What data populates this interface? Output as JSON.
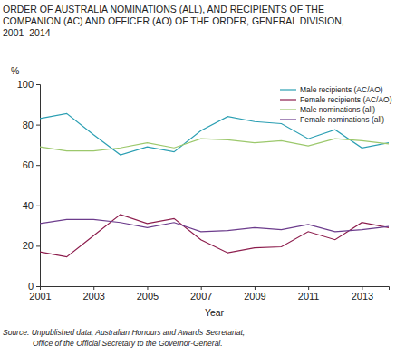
{
  "chart_data": {
    "type": "line",
    "title": "ORDER OF AUSTRALIA NOMINATIONS (ALL), AND RECIPIENTS OF THE\nCOMPANION (AC) AND OFFICER (AO) OF THE ORDER, GENERAL DIVISION,\n2001–2014",
    "x_label": "Year",
    "y_label": "%",
    "source": "Source: Unpublished data, Australian Honours and Awards Secretariat,\nOffice of the Official Secretary to the Governor-General.",
    "x": [
      2001,
      2002,
      2003,
      2004,
      2005,
      2006,
      2007,
      2008,
      2009,
      2010,
      2011,
      2012,
      2013,
      2014
    ],
    "series": [
      {
        "name": "Male recipients (AC/AO)",
        "color": "#2b9fb3",
        "values": [
          83,
          85.5,
          75,
          65,
          69,
          66.5,
          77,
          84,
          81.5,
          80.5,
          73,
          77.5,
          68.5,
          71
        ]
      },
      {
        "name": "Female recipients (AC/AO)",
        "color": "#8c1c4c",
        "values": [
          17,
          14.5,
          25,
          35.5,
          31,
          33.5,
          23,
          16.5,
          19,
          19.5,
          27,
          23,
          31.5,
          29
        ]
      },
      {
        "name": "Male nominations (all)",
        "color": "#9cc86c",
        "values": [
          69,
          67,
          67,
          68.5,
          71,
          68.5,
          73,
          72.5,
          71,
          72,
          69.5,
          73,
          72,
          70.5
        ]
      },
      {
        "name": "Female nominations (all)",
        "color": "#6c3c8c",
        "values": [
          31,
          33,
          33,
          31.5,
          29,
          31.5,
          27,
          27.5,
          29,
          28,
          30.5,
          27,
          28,
          29.5
        ]
      }
    ],
    "xlim": [
      2001,
      2014
    ],
    "xticks": [
      2001,
      2003,
      2005,
      2007,
      2009,
      2011,
      2013
    ],
    "ylim": [
      0,
      100
    ],
    "yticks": [
      0,
      20,
      40,
      60,
      80,
      100
    ],
    "grid": false,
    "legend": "upper right"
  }
}
